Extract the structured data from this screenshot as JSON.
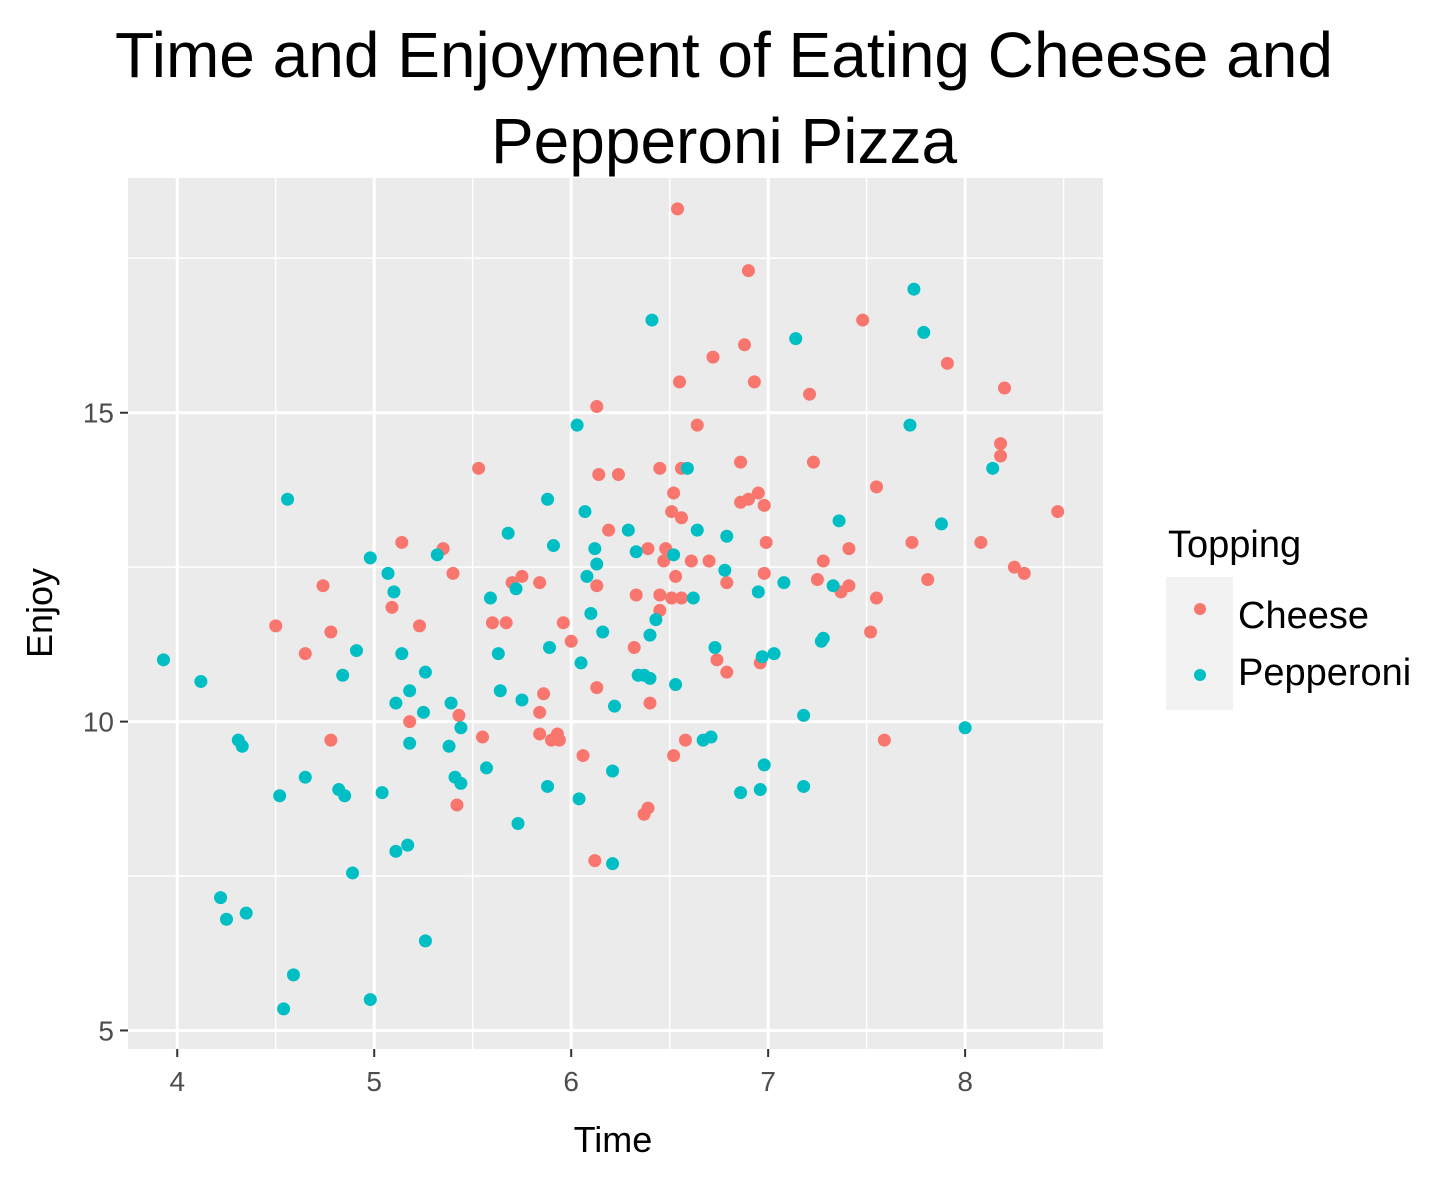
{
  "chart_data": {
    "type": "scatter",
    "title": "Time and Enjoyment of Eating Cheese and Pepperoni Pizza",
    "xlabel": "Time",
    "ylabel": "Enjoy",
    "xlim": [
      3.75,
      8.7
    ],
    "ylim": [
      4.7,
      18.8
    ],
    "xticks": [
      4,
      5,
      6,
      7,
      8
    ],
    "yticks": [
      5,
      10,
      15
    ],
    "grid": true,
    "legend": {
      "title": "Topping",
      "position": "right"
    },
    "series": [
      {
        "name": "Cheese",
        "color": "#F8766D",
        "points": [
          [
            6.54,
            18.3
          ],
          [
            6.9,
            17.3
          ],
          [
            7.48,
            16.5
          ],
          [
            6.88,
            16.1
          ],
          [
            6.72,
            15.9
          ],
          [
            7.91,
            15.8
          ],
          [
            6.55,
            15.5
          ],
          [
            6.93,
            15.5
          ],
          [
            7.21,
            15.3
          ],
          [
            8.2,
            15.4
          ],
          [
            6.13,
            15.1
          ],
          [
            6.64,
            14.8
          ],
          [
            8.18,
            14.5
          ],
          [
            8.18,
            14.3
          ],
          [
            6.86,
            14.2
          ],
          [
            7.23,
            14.2
          ],
          [
            6.56,
            14.1
          ],
          [
            6.45,
            14.1
          ],
          [
            5.53,
            14.1
          ],
          [
            6.14,
            14.0
          ],
          [
            6.24,
            14.0
          ],
          [
            6.52,
            13.7
          ],
          [
            7.55,
            13.8
          ],
          [
            6.95,
            13.7
          ],
          [
            6.9,
            13.6
          ],
          [
            6.86,
            13.55
          ],
          [
            6.98,
            13.5
          ],
          [
            6.51,
            13.4
          ],
          [
            6.56,
            13.3
          ],
          [
            8.47,
            13.4
          ],
          [
            6.19,
            13.1
          ],
          [
            5.14,
            12.9
          ],
          [
            6.99,
            12.9
          ],
          [
            7.73,
            12.9
          ],
          [
            8.08,
            12.9
          ],
          [
            5.35,
            12.8
          ],
          [
            6.39,
            12.8
          ],
          [
            6.48,
            12.8
          ],
          [
            7.41,
            12.8
          ],
          [
            6.47,
            12.6
          ],
          [
            6.61,
            12.6
          ],
          [
            6.7,
            12.6
          ],
          [
            7.28,
            12.6
          ],
          [
            8.25,
            12.5
          ],
          [
            8.3,
            12.4
          ],
          [
            6.98,
            12.4
          ],
          [
            5.4,
            12.4
          ],
          [
            6.53,
            12.35
          ],
          [
            7.25,
            12.3
          ],
          [
            7.81,
            12.3
          ],
          [
            5.75,
            12.35
          ],
          [
            5.7,
            12.25
          ],
          [
            5.84,
            12.25
          ],
          [
            6.13,
            12.2
          ],
          [
            6.79,
            12.25
          ],
          [
            4.74,
            12.2
          ],
          [
            7.41,
            12.2
          ],
          [
            7.37,
            12.1
          ],
          [
            6.45,
            12.05
          ],
          [
            6.33,
            12.05
          ],
          [
            6.51,
            12.0
          ],
          [
            6.56,
            12.0
          ],
          [
            7.55,
            12.0
          ],
          [
            5.09,
            11.85
          ],
          [
            6.45,
            11.8
          ],
          [
            5.6,
            11.6
          ],
          [
            5.67,
            11.6
          ],
          [
            5.96,
            11.6
          ],
          [
            4.5,
            11.55
          ],
          [
            5.23,
            11.55
          ],
          [
            4.78,
            11.45
          ],
          [
            7.52,
            11.45
          ],
          [
            6.0,
            11.3
          ],
          [
            6.32,
            11.2
          ],
          [
            4.65,
            11.1
          ],
          [
            6.74,
            11.0
          ],
          [
            6.96,
            10.95
          ],
          [
            6.79,
            10.8
          ],
          [
            6.13,
            10.55
          ],
          [
            5.86,
            10.45
          ],
          [
            6.4,
            10.3
          ],
          [
            5.84,
            10.15
          ],
          [
            5.43,
            10.1
          ],
          [
            5.18,
            10.0
          ],
          [
            5.55,
            9.75
          ],
          [
            5.84,
            9.8
          ],
          [
            5.9,
            9.7
          ],
          [
            5.94,
            9.7
          ],
          [
            5.93,
            9.8
          ],
          [
            6.58,
            9.7
          ],
          [
            7.59,
            9.7
          ],
          [
            4.78,
            9.7
          ],
          [
            6.06,
            9.45
          ],
          [
            6.52,
            9.45
          ],
          [
            5.42,
            8.65
          ],
          [
            6.39,
            8.6
          ],
          [
            6.37,
            8.5
          ],
          [
            6.12,
            7.75
          ]
        ]
      },
      {
        "name": "Pepperoni",
        "color": "#00BFC4",
        "points": [
          [
            7.74,
            17.0
          ],
          [
            6.41,
            16.5
          ],
          [
            7.79,
            16.3
          ],
          [
            7.14,
            16.2
          ],
          [
            6.03,
            14.8
          ],
          [
            7.72,
            14.8
          ],
          [
            8.14,
            14.1
          ],
          [
            6.59,
            14.1
          ],
          [
            4.56,
            13.6
          ],
          [
            5.88,
            13.6
          ],
          [
            6.07,
            13.4
          ],
          [
            7.36,
            13.25
          ],
          [
            7.88,
            13.2
          ],
          [
            6.29,
            13.1
          ],
          [
            6.64,
            13.1
          ],
          [
            5.68,
            13.05
          ],
          [
            6.79,
            13.0
          ],
          [
            5.91,
            12.85
          ],
          [
            6.12,
            12.8
          ],
          [
            6.33,
            12.75
          ],
          [
            5.32,
            12.7
          ],
          [
            4.98,
            12.65
          ],
          [
            6.52,
            12.7
          ],
          [
            6.13,
            12.55
          ],
          [
            6.78,
            12.45
          ],
          [
            5.07,
            12.4
          ],
          [
            6.08,
            12.35
          ],
          [
            7.08,
            12.25
          ],
          [
            7.33,
            12.2
          ],
          [
            5.1,
            12.1
          ],
          [
            5.72,
            12.15
          ],
          [
            6.95,
            12.1
          ],
          [
            5.59,
            12.0
          ],
          [
            6.62,
            12.0
          ],
          [
            6.1,
            11.75
          ],
          [
            6.43,
            11.65
          ],
          [
            6.16,
            11.45
          ],
          [
            6.4,
            11.4
          ],
          [
            7.28,
            11.35
          ],
          [
            7.27,
            11.3
          ],
          [
            5.89,
            11.2
          ],
          [
            6.73,
            11.2
          ],
          [
            4.91,
            11.15
          ],
          [
            5.14,
            11.1
          ],
          [
            5.63,
            11.1
          ],
          [
            7.03,
            11.1
          ],
          [
            6.97,
            11.05
          ],
          [
            3.93,
            11.0
          ],
          [
            6.05,
            10.95
          ],
          [
            5.26,
            10.8
          ],
          [
            6.34,
            10.75
          ],
          [
            6.37,
            10.75
          ],
          [
            6.4,
            10.7
          ],
          [
            4.84,
            10.75
          ],
          [
            4.12,
            10.65
          ],
          [
            6.53,
            10.6
          ],
          [
            5.64,
            10.5
          ],
          [
            5.18,
            10.5
          ],
          [
            5.75,
            10.35
          ],
          [
            5.11,
            10.3
          ],
          [
            5.39,
            10.3
          ],
          [
            6.22,
            10.25
          ],
          [
            5.25,
            10.15
          ],
          [
            7.18,
            10.1
          ],
          [
            5.44,
            9.9
          ],
          [
            8.0,
            9.9
          ],
          [
            6.71,
            9.75
          ],
          [
            4.31,
            9.7
          ],
          [
            4.33,
            9.6
          ],
          [
            5.18,
            9.65
          ],
          [
            5.38,
            9.6
          ],
          [
            6.67,
            9.7
          ],
          [
            6.98,
            9.3
          ],
          [
            5.57,
            9.25
          ],
          [
            6.21,
            9.2
          ],
          [
            4.65,
            9.1
          ],
          [
            5.41,
            9.1
          ],
          [
            5.44,
            9.0
          ],
          [
            5.88,
            8.95
          ],
          [
            6.96,
            8.9
          ],
          [
            7.18,
            8.95
          ],
          [
            4.82,
            8.9
          ],
          [
            4.85,
            8.8
          ],
          [
            5.04,
            8.85
          ],
          [
            4.52,
            8.8
          ],
          [
            6.04,
            8.75
          ],
          [
            6.86,
            8.85
          ],
          [
            5.73,
            8.35
          ],
          [
            5.17,
            8.0
          ],
          [
            5.11,
            7.9
          ],
          [
            6.21,
            7.7
          ],
          [
            4.89,
            7.55
          ],
          [
            4.22,
            7.15
          ],
          [
            4.25,
            6.8
          ],
          [
            4.35,
            6.9
          ],
          [
            5.26,
            6.45
          ],
          [
            4.59,
            5.9
          ],
          [
            4.98,
            5.5
          ],
          [
            4.54,
            5.35
          ]
        ]
      }
    ]
  }
}
